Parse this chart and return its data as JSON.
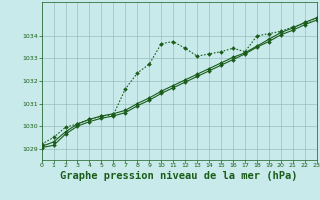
{
  "background_color": "#c8eaea",
  "grid_color": "#9bbfbf",
  "line_color": "#1a5c1a",
  "title": "Graphe pression niveau de la mer (hPa)",
  "title_fontsize": 7.5,
  "xlim": [
    0,
    23
  ],
  "ylim": [
    1028.5,
    1035.5
  ],
  "yticks": [
    1029,
    1030,
    1031,
    1032,
    1033,
    1034
  ],
  "xticks": [
    0,
    1,
    2,
    3,
    4,
    5,
    6,
    7,
    8,
    9,
    10,
    11,
    12,
    13,
    14,
    15,
    16,
    17,
    18,
    19,
    20,
    21,
    22,
    23
  ],
  "series1_x": [
    0,
    1,
    2,
    3,
    4,
    5,
    6,
    7,
    8,
    9,
    10,
    11,
    12,
    13,
    14,
    15,
    16,
    17,
    18,
    19,
    20,
    21,
    22,
    23
  ],
  "series1_y": [
    1029.05,
    1029.15,
    1029.65,
    1030.0,
    1030.2,
    1030.35,
    1030.45,
    1030.6,
    1030.9,
    1031.15,
    1031.45,
    1031.7,
    1031.95,
    1032.2,
    1032.45,
    1032.7,
    1032.95,
    1033.2,
    1033.5,
    1033.75,
    1034.05,
    1034.25,
    1034.5,
    1034.7
  ],
  "series2_x": [
    0,
    1,
    2,
    3,
    4,
    5,
    6,
    7,
    8,
    9,
    10,
    11,
    12,
    13,
    14,
    15,
    16,
    17,
    18,
    19,
    20,
    21,
    22,
    23
  ],
  "series2_y": [
    1029.1,
    1029.3,
    1029.75,
    1030.1,
    1030.3,
    1030.45,
    1030.55,
    1030.7,
    1031.0,
    1031.25,
    1031.55,
    1031.8,
    1032.05,
    1032.3,
    1032.55,
    1032.8,
    1033.05,
    1033.25,
    1033.55,
    1033.85,
    1034.15,
    1034.35,
    1034.6,
    1034.8
  ],
  "series3_x": [
    0,
    1,
    2,
    3,
    4,
    5,
    6,
    7,
    8,
    9,
    10,
    11,
    12,
    13,
    14,
    15,
    16,
    17,
    18,
    19,
    20,
    21,
    22,
    23
  ],
  "series3_y": [
    1029.2,
    1029.5,
    1029.95,
    1030.1,
    1030.3,
    1030.45,
    1030.5,
    1031.65,
    1032.35,
    1032.75,
    1033.65,
    1033.75,
    1033.45,
    1033.1,
    1033.2,
    1033.3,
    1033.45,
    1033.3,
    1034.0,
    1034.1,
    1034.2,
    1034.4,
    1034.55,
    1034.8
  ]
}
